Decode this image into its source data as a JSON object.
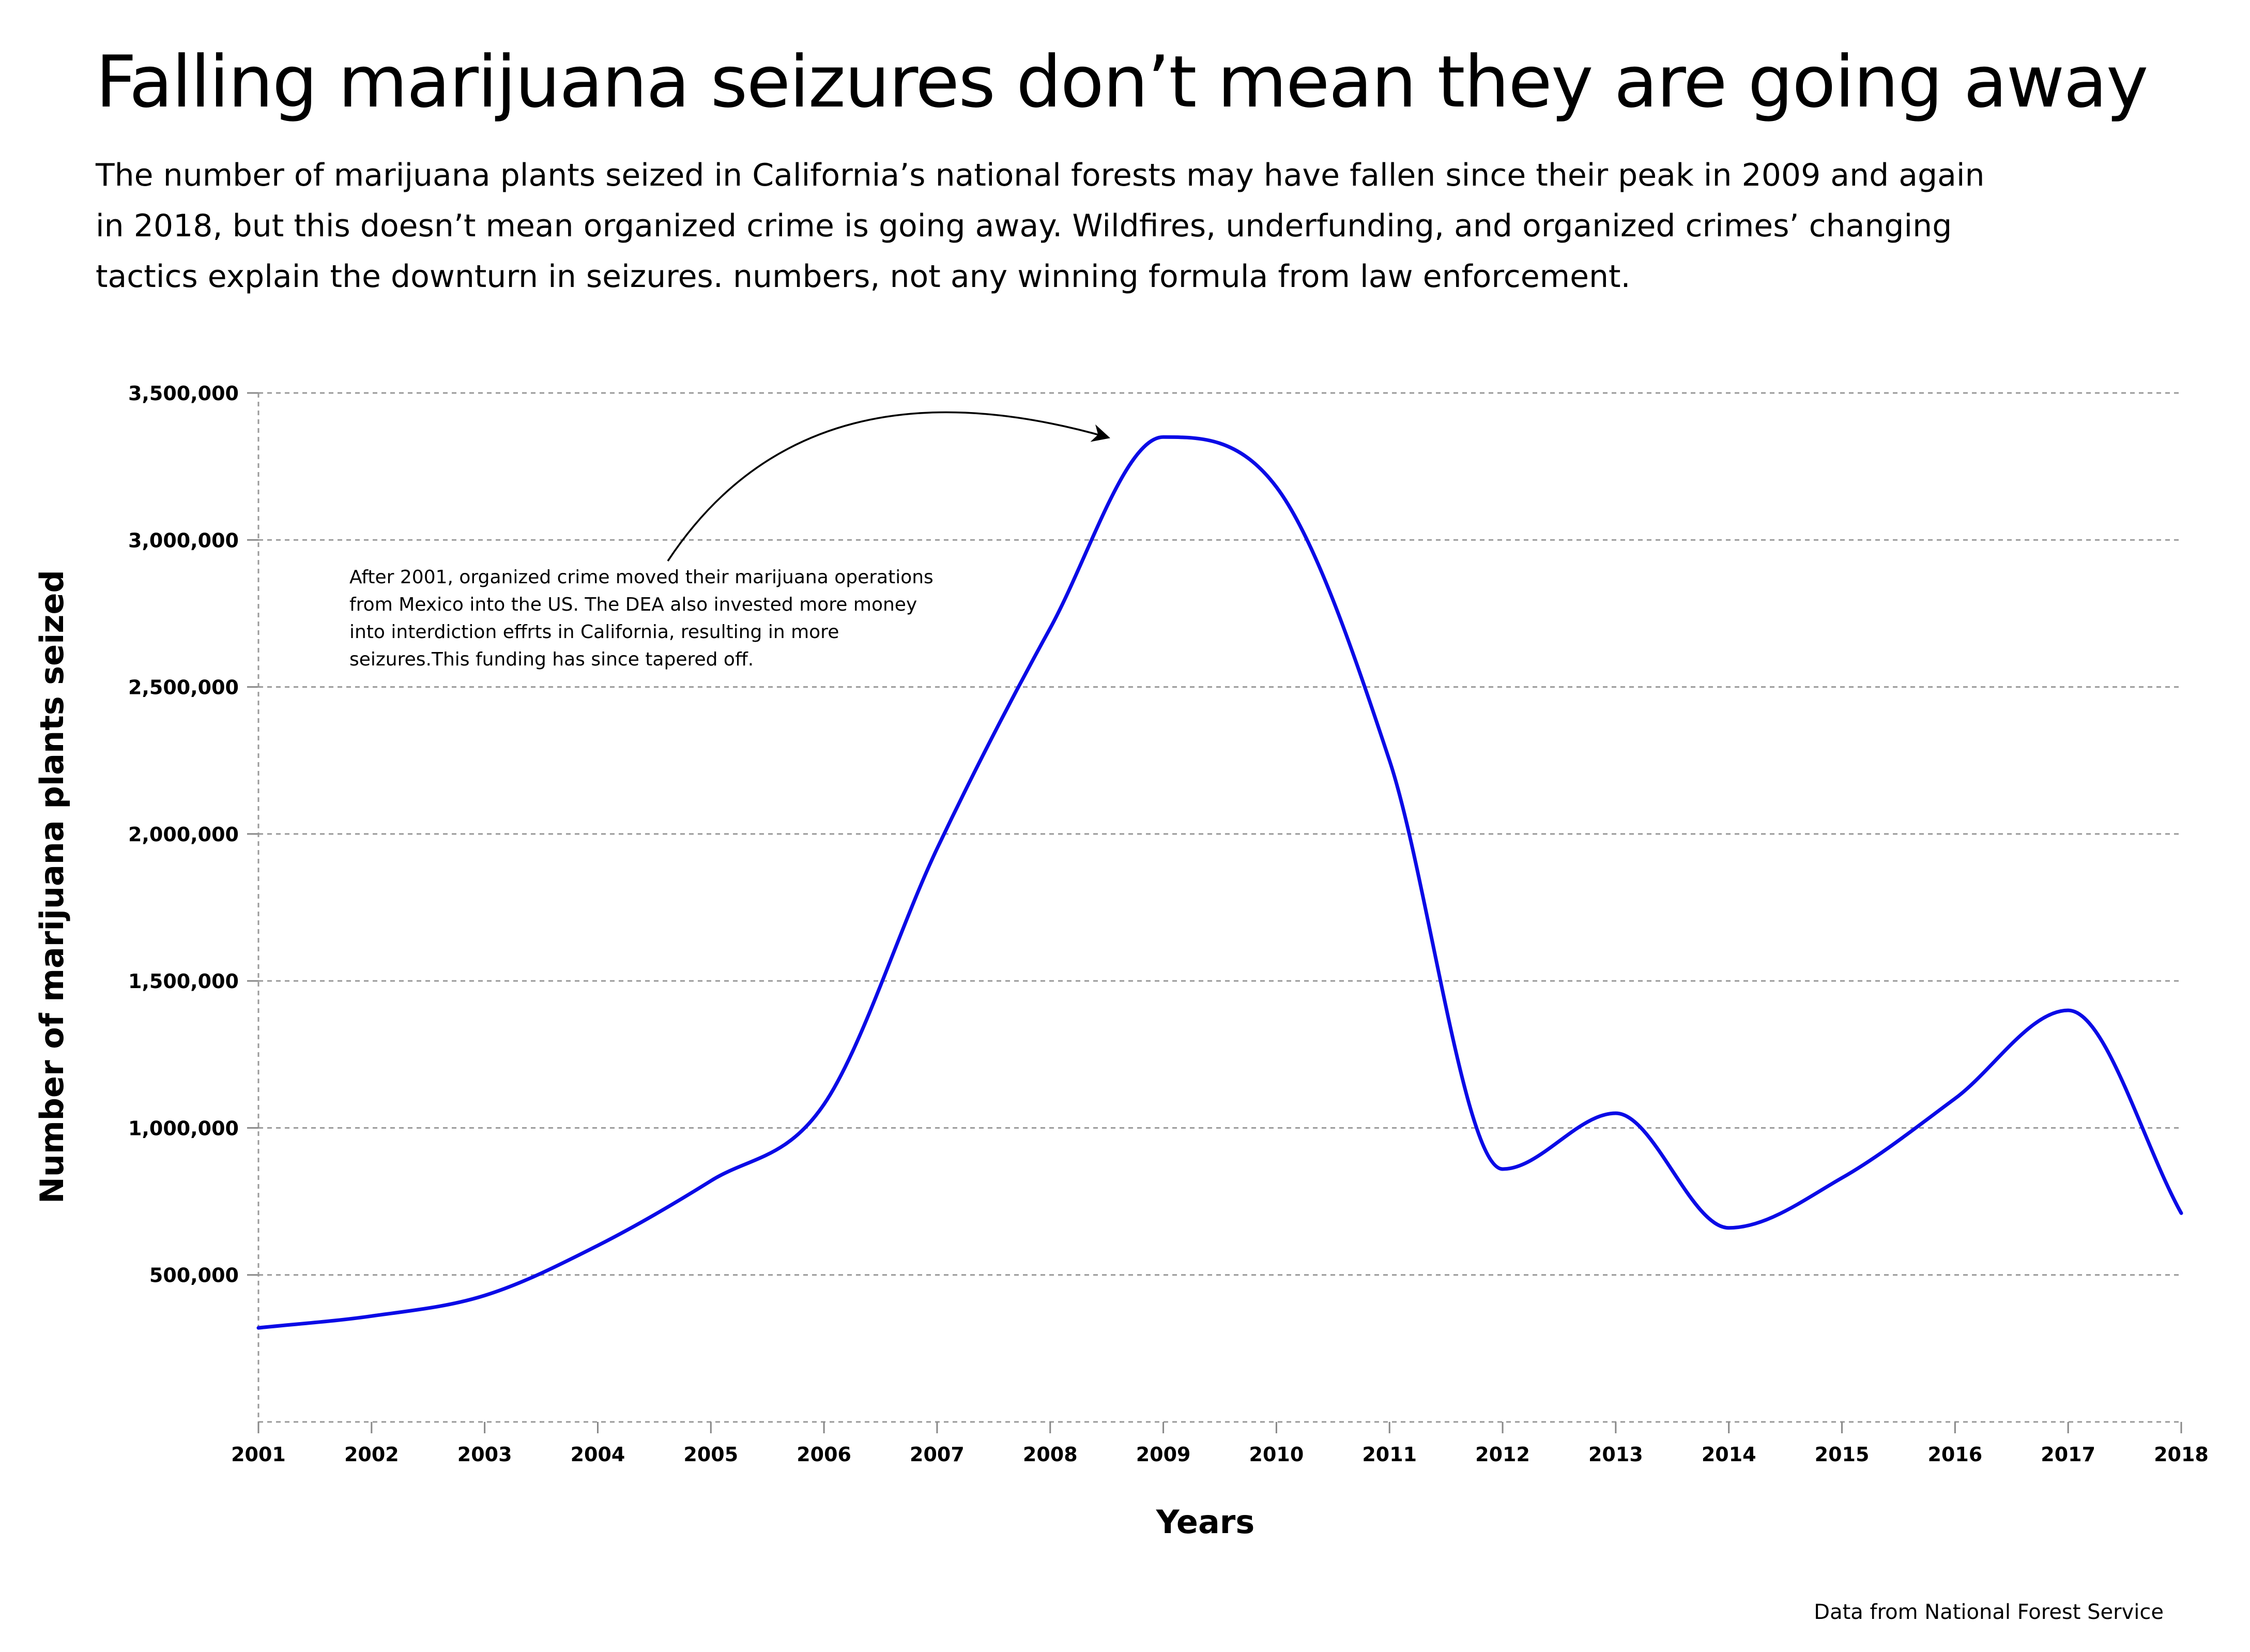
{
  "chart_data": {
    "type": "line",
    "title": "Falling marijuana seizures don’t mean they are going away",
    "subtitle": "The number of marijuana plants seized in California’s national forests may have fallen since their peak in 2009 and again in 2018, but this doesn’t mean organized crime is going away.  Wildfires, underfunding, and organized crimes’ changing tactics explain the downturn in seizures. numbers, not any winning formula from law enforcement.",
    "xlabel": "Years",
    "ylabel": "Number of marijuana plants seized",
    "x": [
      2001,
      2002,
      2003,
      2004,
      2005,
      2006,
      2007,
      2008,
      2009,
      2010,
      2011,
      2012,
      2013,
      2014,
      2015,
      2016,
      2017,
      2018
    ],
    "series": [
      {
        "values": [
          320000,
          360000,
          430000,
          600000,
          820000,
          1080000,
          1950000,
          2700000,
          3350000,
          3180000,
          2250000,
          860000,
          1050000,
          660000,
          830000,
          1100000,
          1400000,
          710000
        ]
      }
    ],
    "xticks": [
      "2001",
      "2002",
      "2003",
      "2004",
      "2005",
      "2006",
      "2007",
      "2008",
      "2009",
      "2010",
      "2011",
      "2012",
      "2013",
      "2014",
      "2015",
      "2016",
      "2017",
      "2018"
    ],
    "yticks": [
      500000,
      1000000,
      1500000,
      2000000,
      2500000,
      3000000,
      3500000
    ],
    "ytick_labels": [
      "500,000",
      "1,000,000",
      "1,500,000",
      "2,000,000",
      "2,500,000",
      "3,000,000",
      "3,500,000"
    ],
    "ylim": [
      0,
      3500000
    ],
    "xlim": [
      2001,
      2018
    ],
    "grid": "horizontal dashed",
    "line_color": "#0a0ae6",
    "annotation": {
      "lines": [
        "After 2001, organized crime moved their marijuana operations",
        "from Mexico into the US.  The DEA also invested more money",
        "into interdiction effrts in California, resulting in more",
        "seizures.This funding has since tapered off."
      ],
      "arrow_target": [
        2008.5,
        3350000
      ]
    },
    "source": "Data from National Forest Service"
  }
}
